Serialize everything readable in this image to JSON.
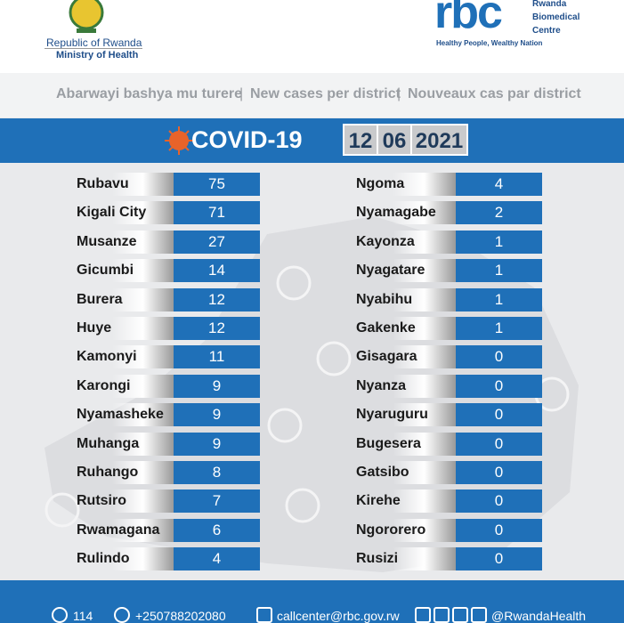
{
  "header": {
    "left_title": "Republic of Rwanda",
    "left_subtitle": "Ministry of Health",
    "right_logo": "rbc",
    "right_name": [
      "Rwanda",
      "Biomedical",
      "Centre"
    ],
    "right_tagline": "Healthy People, Wealthy Nation"
  },
  "subtitle": [
    "Abarwayi bashya mu turere",
    "New cases per district",
    "Nouveaux cas par district"
  ],
  "banner": {
    "title": "COVID-19",
    "date": [
      "12",
      "06",
      "2021"
    ]
  },
  "table": {
    "left": [
      [
        "Rubavu",
        "75"
      ],
      [
        "Kigali City",
        "71"
      ],
      [
        "Musanze",
        "27"
      ],
      [
        "Gicumbi",
        "14"
      ],
      [
        "Burera",
        "12"
      ],
      [
        "Huye",
        "12"
      ],
      [
        "Kamonyi",
        "11"
      ],
      [
        "Karongi",
        "9"
      ],
      [
        "Nyamasheke",
        "9"
      ],
      [
        "Muhanga",
        "9"
      ],
      [
        "Ruhango",
        "8"
      ],
      [
        "Rutsiro",
        "7"
      ],
      [
        "Rwamagana",
        "6"
      ],
      [
        "Rulindo",
        "4"
      ]
    ],
    "right": [
      [
        "Ngoma",
        "4"
      ],
      [
        "Nyamagabe",
        "2"
      ],
      [
        "Kayonza",
        "1"
      ],
      [
        "Nyagatare",
        "1"
      ],
      [
        "Nyabihu",
        "1"
      ],
      [
        "Gakenke",
        "1"
      ],
      [
        "Gisagara",
        "0"
      ],
      [
        "Nyanza",
        "0"
      ],
      [
        "Nyaruguru",
        "0"
      ],
      [
        "Bugesera",
        "0"
      ],
      [
        "Gatsibo",
        "0"
      ],
      [
        "Kirehe",
        "0"
      ],
      [
        "Ngororero",
        "0"
      ],
      [
        "Rusizi",
        "0"
      ]
    ]
  },
  "footer": [
    "114",
    "+250788202080",
    "callcenter@rbc.gov.rw",
    "@RwandaHealth"
  ]
}
